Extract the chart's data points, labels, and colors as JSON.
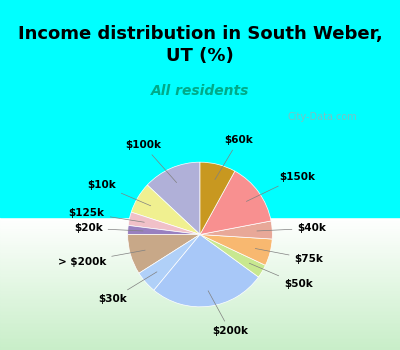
{
  "title": "Income distribution in South Weber,\nUT (%)",
  "subtitle": "All residents",
  "labels": [
    "$100k",
    "$10k",
    "$125k",
    "$20k",
    "> $200k",
    "$30k",
    "$200k",
    "$50k",
    "$75k",
    "$40k",
    "$150k",
    "$60k"
  ],
  "values": [
    13,
    7,
    3,
    2,
    9,
    5,
    26,
    3,
    6,
    4,
    14,
    8
  ],
  "colors": [
    "#b3b3e6",
    "#ffff99",
    "#ffcccc",
    "#c8a0d8",
    "#c8b4a0",
    "#add8e6",
    "#add8e6",
    "#ccff99",
    "#ffcc88",
    "#e8c0b0",
    "#ffaaaa",
    "#cc9900"
  ],
  "pie_colors": [
    "#b3b3e6",
    "#ffff99",
    "#ffcccc",
    "#b090c8",
    "#d4b8a8",
    "#99ccff",
    "#add8ff",
    "#ccee88",
    "#ffbb77",
    "#ddaaaa",
    "#ff9999",
    "#bb8800"
  ],
  "background_top": "#00ffff",
  "background_bottom": "#c8eec8",
  "title_color": "#000000",
  "subtitle_color": "#00aa88"
}
